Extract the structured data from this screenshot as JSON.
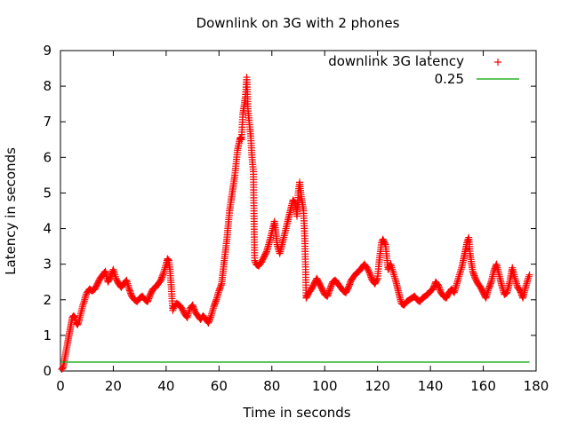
{
  "chart_data": {
    "type": "scatter",
    "title": "Downlink on 3G with 2 phones",
    "xlabel": "Time in seconds",
    "ylabel": "Latency in seconds",
    "xlim": [
      0,
      180
    ],
    "ylim": [
      0,
      9
    ],
    "x_ticks": [
      "0",
      "20",
      "40",
      "60",
      "80",
      "100",
      "120",
      "140",
      "160",
      "180"
    ],
    "y_ticks": [
      "0",
      "1",
      "2",
      "3",
      "4",
      "5",
      "6",
      "7",
      "8",
      "9"
    ],
    "grid": false,
    "legend_position": "top-right",
    "series": [
      {
        "name": "downlink 3G latency",
        "marker": "plus",
        "color": "#ff0000",
        "points": [
          [
            0.5,
            0.05
          ],
          [
            1,
            0.1
          ],
          [
            1.5,
            0.3
          ],
          [
            2,
            0.5
          ],
          [
            2.5,
            0.7
          ],
          [
            3,
            0.9
          ],
          [
            3.5,
            1.1
          ],
          [
            4,
            1.3
          ],
          [
            4.5,
            1.5
          ],
          [
            5,
            1.55
          ],
          [
            5.5,
            1.5
          ],
          [
            6,
            1.35
          ],
          [
            6.5,
            1.3
          ],
          [
            7,
            1.4
          ],
          [
            7.5,
            1.55
          ],
          [
            8,
            1.7
          ],
          [
            8.5,
            1.85
          ],
          [
            9,
            1.95
          ],
          [
            9.5,
            2.1
          ],
          [
            10,
            2.2
          ],
          [
            11,
            2.3
          ],
          [
            12,
            2.25
          ],
          [
            13,
            2.3
          ],
          [
            14,
            2.45
          ],
          [
            15,
            2.6
          ],
          [
            16,
            2.7
          ],
          [
            17,
            2.8
          ],
          [
            18,
            2.5
          ],
          [
            19,
            2.65
          ],
          [
            20,
            2.85
          ],
          [
            21,
            2.6
          ],
          [
            22,
            2.45
          ],
          [
            23,
            2.35
          ],
          [
            24,
            2.45
          ],
          [
            25,
            2.55
          ],
          [
            26,
            2.3
          ],
          [
            27,
            2.1
          ],
          [
            28,
            2.0
          ],
          [
            29,
            1.95
          ],
          [
            30,
            2.05
          ],
          [
            31,
            2.1
          ],
          [
            32,
            2.0
          ],
          [
            33,
            1.95
          ],
          [
            34,
            2.15
          ],
          [
            35,
            2.3
          ],
          [
            36,
            2.35
          ],
          [
            37,
            2.45
          ],
          [
            38,
            2.55
          ],
          [
            39,
            2.75
          ],
          [
            40,
            3.0
          ],
          [
            40.5,
            3.15
          ],
          [
            41,
            3.1
          ],
          [
            41.5,
            2.8
          ],
          [
            42,
            2.3
          ],
          [
            42.5,
            1.7
          ],
          [
            43,
            1.8
          ],
          [
            44,
            1.9
          ],
          [
            45,
            1.85
          ],
          [
            46,
            1.75
          ],
          [
            47,
            1.6
          ],
          [
            48,
            1.5
          ],
          [
            49,
            1.75
          ],
          [
            50,
            1.85
          ],
          [
            51,
            1.65
          ],
          [
            52,
            1.55
          ],
          [
            53,
            1.45
          ],
          [
            54,
            1.55
          ],
          [
            55,
            1.45
          ],
          [
            56,
            1.35
          ],
          [
            57,
            1.55
          ],
          [
            58,
            1.8
          ],
          [
            59,
            2.0
          ],
          [
            60,
            2.25
          ],
          [
            61,
            2.45
          ],
          [
            62,
            3.1
          ],
          [
            63,
            3.7
          ],
          [
            64,
            4.5
          ],
          [
            65,
            5.0
          ],
          [
            66,
            5.5
          ],
          [
            67,
            6.2
          ],
          [
            68,
            6.55
          ],
          [
            68.5,
            6.5
          ],
          [
            69,
            7.2
          ],
          [
            70,
            7.7
          ],
          [
            70.5,
            8.25
          ],
          [
            71,
            7.3
          ],
          [
            72,
            6.6
          ],
          [
            72.5,
            6.0
          ],
          [
            73,
            5.6
          ],
          [
            73.5,
            3.1
          ],
          [
            74,
            3.0
          ],
          [
            75,
            2.95
          ],
          [
            76,
            3.05
          ],
          [
            77,
            3.2
          ],
          [
            78,
            3.35
          ],
          [
            79,
            3.6
          ],
          [
            80,
            3.9
          ],
          [
            81,
            4.2
          ],
          [
            82,
            3.55
          ],
          [
            83,
            3.3
          ],
          [
            84,
            3.6
          ],
          [
            85,
            3.9
          ],
          [
            86,
            4.2
          ],
          [
            87,
            4.5
          ],
          [
            88,
            4.8
          ],
          [
            89,
            4.7
          ],
          [
            89.5,
            4.35
          ],
          [
            90,
            5.0
          ],
          [
            90.5,
            5.3
          ],
          [
            91,
            4.95
          ],
          [
            92,
            4.5
          ],
          [
            92.5,
            3.65
          ],
          [
            93,
            2.05
          ],
          [
            94,
            2.2
          ],
          [
            95,
            2.3
          ],
          [
            96,
            2.45
          ],
          [
            97,
            2.6
          ],
          [
            98,
            2.45
          ],
          [
            99,
            2.3
          ],
          [
            100,
            2.15
          ],
          [
            101,
            2.1
          ],
          [
            102,
            2.3
          ],
          [
            103,
            2.5
          ],
          [
            104,
            2.55
          ],
          [
            105,
            2.45
          ],
          [
            106,
            2.35
          ],
          [
            107,
            2.25
          ],
          [
            108,
            2.2
          ],
          [
            109,
            2.35
          ],
          [
            110,
            2.55
          ],
          [
            111,
            2.65
          ],
          [
            112,
            2.75
          ],
          [
            113,
            2.8
          ],
          [
            114,
            2.9
          ],
          [
            115,
            3.0
          ],
          [
            116,
            2.9
          ],
          [
            117,
            2.75
          ],
          [
            118,
            2.55
          ],
          [
            119,
            2.45
          ],
          [
            120,
            2.6
          ],
          [
            120.5,
            3.0
          ],
          [
            121,
            3.3
          ],
          [
            121.5,
            3.6
          ],
          [
            122,
            3.7
          ],
          [
            123,
            3.55
          ],
          [
            124,
            2.85
          ],
          [
            125,
            3.0
          ],
          [
            126,
            2.75
          ],
          [
            127,
            2.5
          ],
          [
            128,
            2.2
          ],
          [
            129,
            1.9
          ],
          [
            130,
            1.85
          ],
          [
            131,
            1.95
          ],
          [
            132,
            2.0
          ],
          [
            133,
            2.05
          ],
          [
            134,
            2.1
          ],
          [
            135,
            2.0
          ],
          [
            136,
            1.95
          ],
          [
            137,
            2.05
          ],
          [
            138,
            2.1
          ],
          [
            139,
            2.15
          ],
          [
            140,
            2.25
          ],
          [
            141,
            2.3
          ],
          [
            142,
            2.5
          ],
          [
            143,
            2.4
          ],
          [
            144,
            2.2
          ],
          [
            145,
            2.1
          ],
          [
            146,
            2.05
          ],
          [
            147,
            2.2
          ],
          [
            148,
            2.3
          ],
          [
            149,
            2.2
          ],
          [
            150,
            2.45
          ],
          [
            151,
            2.7
          ],
          [
            152,
            2.95
          ],
          [
            153,
            3.3
          ],
          [
            154,
            3.65
          ],
          [
            154.5,
            3.75
          ],
          [
            155,
            3.3
          ],
          [
            156,
            2.8
          ],
          [
            157,
            2.6
          ],
          [
            158,
            2.45
          ],
          [
            159,
            2.35
          ],
          [
            160,
            2.2
          ],
          [
            161,
            2.05
          ],
          [
            162,
            2.3
          ],
          [
            163,
            2.5
          ],
          [
            164,
            2.8
          ],
          [
            165,
            3.0
          ],
          [
            166,
            2.7
          ],
          [
            167,
            2.4
          ],
          [
            168,
            2.15
          ],
          [
            169,
            2.2
          ],
          [
            170,
            2.5
          ],
          [
            171,
            2.9
          ],
          [
            172,
            2.6
          ],
          [
            173,
            2.35
          ],
          [
            174,
            2.25
          ],
          [
            175,
            2.05
          ],
          [
            176,
            2.35
          ],
          [
            177,
            2.6
          ],
          [
            177.5,
            2.7
          ]
        ]
      },
      {
        "name": "0.25",
        "marker": "line",
        "color": "#00a000",
        "y": 0.25,
        "x_range": [
          0,
          177.5
        ]
      }
    ]
  }
}
